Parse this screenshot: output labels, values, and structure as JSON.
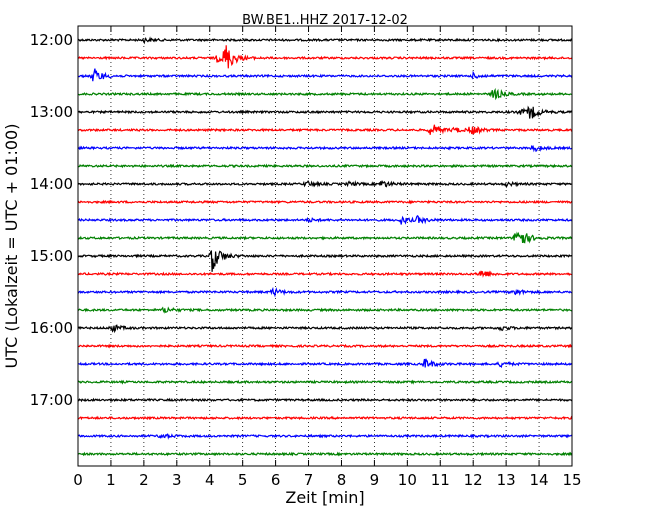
{
  "chart_data": {
    "type": "line",
    "title": "BW.BE1..HHZ 2017-12-02",
    "xlabel": "Zeit  [min]",
    "ylabel": "UTC (Lokalzeit = UTC + 01:00)",
    "xlim": [
      0,
      15
    ],
    "x_ticks": [
      "0",
      "1",
      "2",
      "3",
      "4",
      "5",
      "6",
      "7",
      "8",
      "9",
      "10",
      "11",
      "12",
      "13",
      "14",
      "15"
    ],
    "y_ticks": [
      "12:00",
      "13:00",
      "14:00",
      "15:00",
      "16:00",
      "17:00"
    ],
    "grid": "vertical dotted at each minute",
    "trace_interval_min": 15,
    "colors": [
      "#000000",
      "#ff0000",
      "#0000ff",
      "#008000"
    ],
    "series": [
      {
        "start": "12:00",
        "color": "#000000",
        "events": [
          [
            2.0,
            0.3
          ]
        ]
      },
      {
        "start": "12:15",
        "color": "#ff0000",
        "events": [
          [
            4.45,
            2.6
          ],
          [
            4.2,
            0.6
          ]
        ]
      },
      {
        "start": "12:30",
        "color": "#0000ff",
        "events": [
          [
            0.45,
            1.4
          ],
          [
            12.0,
            0.4
          ]
        ]
      },
      {
        "start": "12:45",
        "color": "#008000",
        "events": [
          [
            12.6,
            1.0
          ]
        ]
      },
      {
        "start": "13:00",
        "color": "#000000",
        "events": [
          [
            13.7,
            1.2
          ],
          [
            13.4,
            0.5
          ]
        ]
      },
      {
        "start": "13:15",
        "color": "#ff0000",
        "events": [
          [
            10.7,
            1.2
          ],
          [
            11.9,
            0.8
          ],
          [
            11.4,
            0.4
          ]
        ]
      },
      {
        "start": "13:30",
        "color": "#0000ff",
        "events": [
          [
            13.8,
            0.6
          ]
        ]
      },
      {
        "start": "13:45",
        "color": "#008000",
        "events": []
      },
      {
        "start": "14:00",
        "color": "#000000",
        "events": [
          [
            6.9,
            0.5
          ],
          [
            9.2,
            0.6
          ],
          [
            8.2,
            0.3
          ],
          [
            13.0,
            0.3
          ]
        ]
      },
      {
        "start": "14:15",
        "color": "#ff0000",
        "events": []
      },
      {
        "start": "14:30",
        "color": "#0000ff",
        "events": [
          [
            9.8,
            0.6
          ],
          [
            10.3,
            0.5
          ],
          [
            7.0,
            0.25
          ]
        ]
      },
      {
        "start": "14:45",
        "color": "#008000",
        "events": [
          [
            13.3,
            2.6
          ]
        ]
      },
      {
        "start": "15:00",
        "color": "#000000",
        "events": [
          [
            4.05,
            2.6
          ]
        ]
      },
      {
        "start": "15:15",
        "color": "#ff0000",
        "events": [
          [
            12.2,
            0.8
          ]
        ]
      },
      {
        "start": "15:30",
        "color": "#0000ff",
        "events": [
          [
            5.9,
            0.6
          ],
          [
            13.2,
            0.6
          ]
        ]
      },
      {
        "start": "15:45",
        "color": "#008000",
        "events": [
          [
            2.6,
            0.5
          ]
        ]
      },
      {
        "start": "16:00",
        "color": "#000000",
        "events": [
          [
            1.0,
            0.7
          ],
          [
            12.8,
            0.4
          ]
        ]
      },
      {
        "start": "16:15",
        "color": "#ff0000",
        "events": []
      },
      {
        "start": "16:30",
        "color": "#0000ff",
        "events": [
          [
            10.5,
            0.9
          ],
          [
            12.8,
            0.4
          ]
        ]
      },
      {
        "start": "16:45",
        "color": "#008000",
        "events": []
      },
      {
        "start": "17:00",
        "color": "#000000",
        "events": []
      },
      {
        "start": "17:15",
        "color": "#ff0000",
        "events": []
      },
      {
        "start": "17:30",
        "color": "#0000ff",
        "events": [
          [
            2.5,
            0.4
          ]
        ]
      },
      {
        "start": "17:45",
        "color": "#008000",
        "events": []
      }
    ]
  }
}
